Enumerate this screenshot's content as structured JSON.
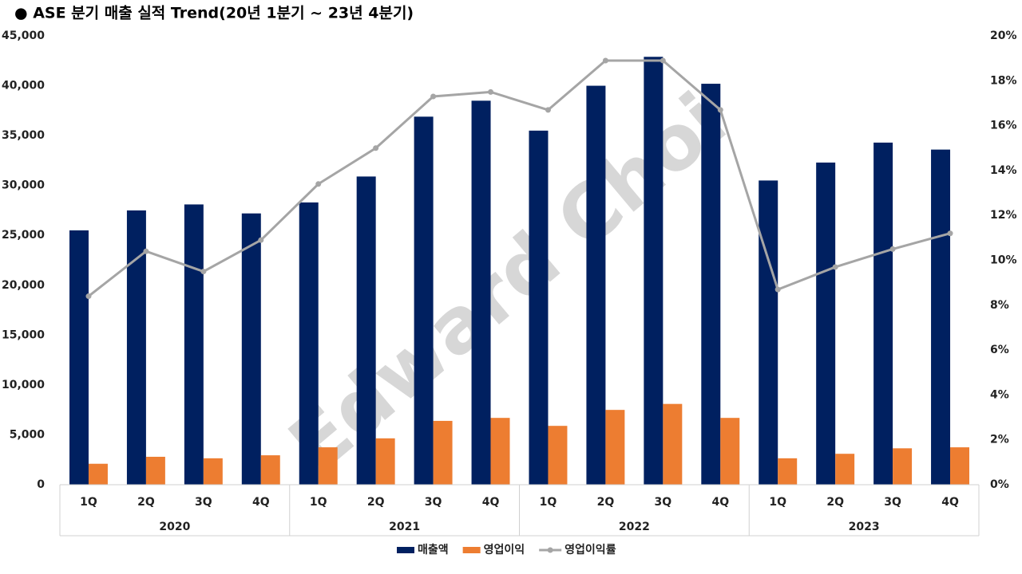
{
  "chart_data": {
    "type": "bar-line",
    "title": "● ASE 분기 매출 실적 Trend(20년 1분기 ~ 23년 4분기)",
    "watermark": "Edward Choi",
    "categories": [
      "1Q",
      "2Q",
      "3Q",
      "4Q",
      "1Q",
      "2Q",
      "3Q",
      "4Q",
      "1Q",
      "2Q",
      "3Q",
      "4Q",
      "1Q",
      "2Q",
      "3Q",
      "4Q"
    ],
    "groups": [
      "2020",
      "2021",
      "2022",
      "2023"
    ],
    "series": [
      {
        "name": "매출액",
        "type": "bar",
        "color": "#002060",
        "values": [
          25500,
          27500,
          28100,
          27200,
          28300,
          30900,
          36900,
          38500,
          35500,
          40000,
          42900,
          40200,
          30500,
          32300,
          34300,
          33600
        ]
      },
      {
        "name": "영업이익",
        "type": "bar",
        "color": "#ed7d31",
        "values": [
          2100,
          2800,
          2650,
          2950,
          3750,
          4650,
          6400,
          6700,
          5900,
          7500,
          8100,
          6700,
          2650,
          3100,
          3650,
          3750
        ]
      },
      {
        "name": "영업이익률",
        "type": "line",
        "axis": "y2",
        "color": "#a5a5a5",
        "values": [
          8.4,
          10.4,
          9.5,
          10.9,
          13.4,
          15.0,
          17.3,
          17.5,
          16.7,
          18.9,
          18.9,
          16.7,
          8.7,
          9.7,
          10.5,
          11.2
        ]
      }
    ],
    "ylim": [
      0,
      45000
    ],
    "yticks": [
      0,
      {
        "value": 5000,
        "label": "5,000"
      },
      {
        "value": 10000,
        "label": "10,000"
      },
      {
        "value": 15000,
        "label": "15,000"
      },
      {
        "value": 20000,
        "label": "20,000"
      },
      {
        "value": 25000,
        "label": "25,000"
      },
      {
        "value": 30000,
        "label": "30,000"
      },
      {
        "value": 35000,
        "label": "35,000"
      },
      {
        "value": 40000,
        "label": "40,000"
      },
      {
        "value": 45000,
        "label": "45,000"
      }
    ],
    "y2lim": [
      0,
      20
    ],
    "y2ticks": [
      {
        "value": 0,
        "label": "0%"
      },
      {
        "value": 2,
        "label": "2%"
      },
      {
        "value": 4,
        "label": "4%"
      },
      {
        "value": 6,
        "label": "6%"
      },
      {
        "value": 8,
        "label": "8%"
      },
      {
        "value": 10,
        "label": "10%"
      },
      {
        "value": 12,
        "label": "12%"
      },
      {
        "value": 14,
        "label": "14%"
      },
      {
        "value": 16,
        "label": "16%"
      },
      {
        "value": 18,
        "label": "18%"
      },
      {
        "value": 20,
        "label": "20%"
      }
    ],
    "grid": false,
    "legend": "bottom"
  }
}
